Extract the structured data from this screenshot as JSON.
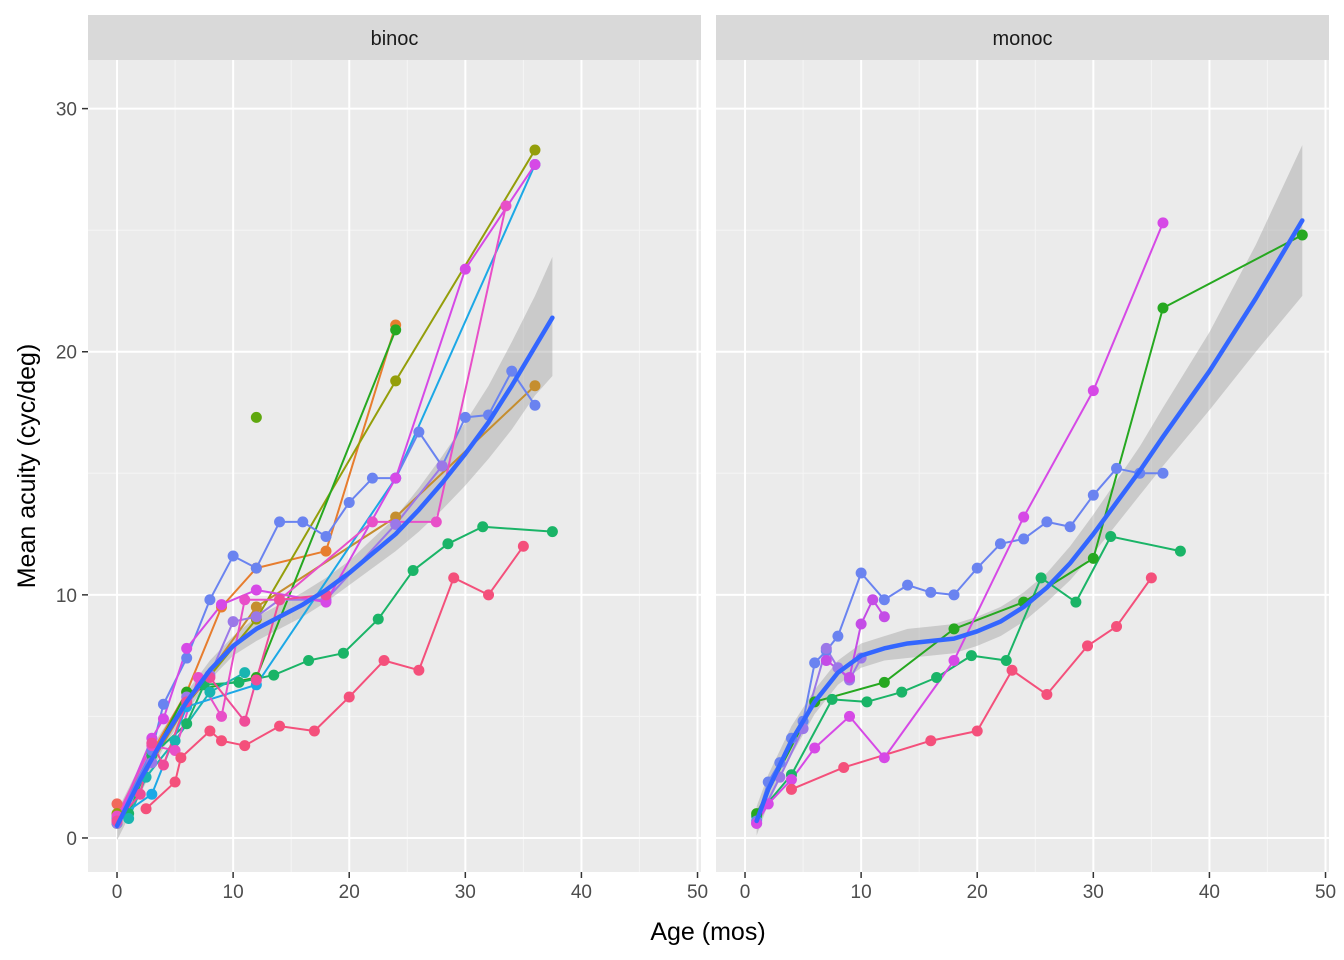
{
  "chart_data": {
    "type": "line",
    "title": "",
    "xlabel": "Age (mos)",
    "ylabel": "Mean acuity (cyc/deg)",
    "panels": [
      "binoc",
      "monoc"
    ],
    "xlim": [
      -2.5,
      50.3
    ],
    "ylim": [
      -1.4,
      32.0
    ],
    "x_ticks": [
      0,
      10,
      20,
      30,
      40,
      50
    ],
    "y_ticks": [
      0,
      10,
      20,
      30
    ],
    "grid": true,
    "legend": "none",
    "colors": {
      "panel_bg": "#ebebeb",
      "strip_bg": "#d9d9d9",
      "grid_major": "#ffffff",
      "grid_minor": "#f5f5f5",
      "smooth_line": "#3366ff",
      "ribbon": "#999999"
    },
    "series": [
      {
        "panel": "binoc",
        "color": "#f2695c",
        "values": [
          [
            0,
            1.4
          ]
        ]
      },
      {
        "panel": "binoc",
        "color": "#e77d2e",
        "values": [
          [
            0,
            0.9
          ],
          [
            3,
            3.5
          ],
          [
            6,
            6.0
          ],
          [
            9,
            9.5
          ],
          [
            12,
            11.1
          ],
          [
            18,
            11.8
          ],
          [
            24,
            21.1
          ]
        ]
      },
      {
        "panel": "binoc",
        "color": "#c58e2f",
        "values": [
          [
            0,
            0.7
          ],
          [
            6,
            5.5
          ],
          [
            12,
            9.5
          ],
          [
            24,
            13.2
          ],
          [
            36,
            18.6
          ]
        ]
      },
      {
        "panel": "binoc",
        "color": "#949e0a",
        "values": [
          [
            0,
            1.0
          ],
          [
            6,
            5.5
          ],
          [
            12,
            9.0
          ],
          [
            24,
            18.8
          ],
          [
            36,
            28.3
          ]
        ]
      },
      {
        "panel": "binoc",
        "color": "#5fa80e",
        "values": [
          [
            12,
            17.3
          ]
        ]
      },
      {
        "panel": "binoc",
        "color": "#26a820",
        "values": [
          [
            0,
            0.6
          ],
          [
            6,
            6.0
          ],
          [
            12,
            6.6
          ],
          [
            24,
            20.9
          ]
        ]
      },
      {
        "panel": "binoc",
        "color": "#1ab467",
        "values": [
          [
            1,
            1.0
          ],
          [
            3,
            3.4
          ],
          [
            6,
            4.7
          ],
          [
            7.5,
            6.3
          ],
          [
            10.5,
            6.4
          ],
          [
            13.5,
            6.7
          ],
          [
            16.5,
            7.3
          ],
          [
            19.5,
            7.6
          ],
          [
            22.5,
            9.0
          ],
          [
            25.5,
            11.0
          ],
          [
            28.5,
            12.1
          ],
          [
            31.5,
            12.8
          ],
          [
            37.5,
            12.6
          ]
        ]
      },
      {
        "panel": "binoc",
        "color": "#19b5b0",
        "values": [
          [
            1,
            0.8
          ],
          [
            2.5,
            2.5
          ],
          [
            5,
            4.0
          ],
          [
            8,
            6.0
          ],
          [
            11,
            6.8
          ]
        ]
      },
      {
        "panel": "binoc",
        "color": "#1ca8e6",
        "values": [
          [
            0,
            0.8
          ],
          [
            3,
            1.8
          ],
          [
            6,
            5.4
          ],
          [
            12,
            6.3
          ],
          [
            24,
            14.8
          ],
          [
            36,
            27.7
          ]
        ]
      },
      {
        "panel": "binoc",
        "color": "#6a83f0",
        "values": [
          [
            0,
            0.7
          ],
          [
            3,
            3.6
          ],
          [
            4,
            5.5
          ],
          [
            6,
            7.4
          ],
          [
            8,
            9.8
          ],
          [
            10,
            11.6
          ],
          [
            12,
            11.1
          ],
          [
            14,
            13.0
          ],
          [
            16,
            13.0
          ],
          [
            18,
            12.4
          ],
          [
            20,
            13.8
          ],
          [
            22,
            14.8
          ],
          [
            24,
            14.8
          ],
          [
            26,
            16.7
          ],
          [
            28,
            15.3
          ],
          [
            30,
            17.3
          ],
          [
            32,
            17.4
          ],
          [
            34,
            19.2
          ],
          [
            36,
            17.8
          ]
        ]
      },
      {
        "panel": "binoc",
        "color": "#9b78e8",
        "values": [
          [
            0,
            0.6
          ],
          [
            3,
            3.1
          ],
          [
            6,
            5.8
          ],
          [
            8,
            6.7
          ],
          [
            10,
            8.9
          ],
          [
            12,
            9.1
          ],
          [
            14,
            9.8
          ],
          [
            18,
            9.8
          ],
          [
            24,
            12.9
          ],
          [
            28,
            15.3
          ]
        ]
      },
      {
        "panel": "binoc",
        "color": "#d649e6",
        "values": [
          [
            0,
            0.7
          ],
          [
            3,
            4.1
          ],
          [
            4,
            4.9
          ],
          [
            6,
            7.8
          ],
          [
            9,
            9.6
          ],
          [
            12,
            10.2
          ],
          [
            18,
            9.7
          ],
          [
            24,
            14.8
          ],
          [
            30,
            23.4
          ],
          [
            36,
            27.7
          ]
        ]
      },
      {
        "panel": "binoc",
        "color": "#e84fc8",
        "values": [
          [
            0,
            0.9
          ],
          [
            3,
            3.8
          ],
          [
            5,
            3.6
          ],
          [
            7,
            6.6
          ],
          [
            9,
            5.0
          ],
          [
            11,
            9.8
          ],
          [
            14,
            9.8
          ],
          [
            22,
            13.0
          ],
          [
            27.5,
            13.0
          ],
          [
            33.5,
            26.0
          ]
        ]
      },
      {
        "panel": "binoc",
        "color": "#ef4c98",
        "values": [
          [
            0,
            0.7
          ],
          [
            2,
            1.8
          ],
          [
            3,
            3.9
          ],
          [
            4,
            3.0
          ],
          [
            6,
            5.6
          ],
          [
            8,
            6.6
          ],
          [
            11,
            4.8
          ],
          [
            12,
            6.5
          ],
          [
            14,
            9.8
          ],
          [
            18,
            10.0
          ]
        ]
      },
      {
        "panel": "binoc",
        "color": "#f4507b",
        "values": [
          [
            2.5,
            1.2
          ],
          [
            5,
            2.3
          ],
          [
            5.5,
            3.3
          ],
          [
            8,
            4.4
          ],
          [
            9,
            4.0
          ],
          [
            11,
            3.8
          ],
          [
            14,
            4.6
          ],
          [
            17,
            4.4
          ],
          [
            20,
            5.8
          ],
          [
            23,
            7.3
          ],
          [
            26,
            6.9
          ],
          [
            29,
            10.7
          ],
          [
            32,
            10.0
          ],
          [
            35,
            12.0
          ]
        ]
      },
      {
        "panel": "monoc",
        "color": "#1ab467",
        "values": [
          [
            1,
            0.9
          ],
          [
            4,
            2.6
          ],
          [
            7.5,
            5.7
          ],
          [
            10.5,
            5.6
          ],
          [
            13.5,
            6.0
          ],
          [
            16.5,
            6.6
          ],
          [
            19.5,
            7.5
          ],
          [
            22.5,
            7.3
          ],
          [
            25.5,
            10.7
          ],
          [
            28.5,
            9.7
          ],
          [
            31.5,
            12.4
          ],
          [
            37.5,
            11.8
          ]
        ]
      },
      {
        "panel": "monoc",
        "color": "#26a820",
        "values": [
          [
            1,
            1.0
          ],
          [
            6,
            5.6
          ],
          [
            12,
            6.4
          ],
          [
            18,
            8.6
          ],
          [
            24,
            9.7
          ],
          [
            30,
            11.5
          ],
          [
            36,
            21.8
          ],
          [
            48,
            24.8
          ]
        ]
      },
      {
        "panel": "monoc",
        "color": "#6a83f0",
        "values": [
          [
            1,
            0.7
          ],
          [
            2,
            2.3
          ],
          [
            3,
            3.1
          ],
          [
            4,
            4.1
          ],
          [
            5,
            4.8
          ],
          [
            6,
            7.2
          ],
          [
            7,
            7.7
          ],
          [
            8,
            8.3
          ],
          [
            10,
            10.9
          ],
          [
            12,
            9.8
          ],
          [
            14,
            10.4
          ],
          [
            16,
            10.1
          ],
          [
            18,
            10.0
          ],
          [
            20,
            11.1
          ],
          [
            22,
            12.1
          ],
          [
            24,
            12.3
          ],
          [
            26,
            13.0
          ],
          [
            28,
            12.8
          ],
          [
            30,
            14.1
          ],
          [
            32,
            15.2
          ],
          [
            34,
            15.0
          ],
          [
            36,
            15.0
          ]
        ]
      },
      {
        "panel": "monoc",
        "color": "#9b78e8",
        "values": [
          [
            1,
            0.6
          ],
          [
            3,
            2.5
          ],
          [
            5,
            4.5
          ],
          [
            7,
            7.8
          ],
          [
            8,
            7.0
          ],
          [
            9,
            6.5
          ],
          [
            10,
            7.4
          ]
        ]
      },
      {
        "panel": "monoc",
        "color": "#d649e6",
        "values": [
          [
            1,
            0.6
          ],
          [
            2,
            1.4
          ],
          [
            4,
            2.4
          ],
          [
            6,
            3.7
          ],
          [
            9,
            5.0
          ],
          [
            12,
            3.3
          ],
          [
            18,
            7.3
          ],
          [
            24,
            13.2
          ],
          [
            30,
            18.4
          ],
          [
            36,
            25.3
          ]
        ]
      },
      {
        "panel": "monoc",
        "color": "#c44ce6",
        "values": [
          [
            7,
            7.3
          ],
          [
            9,
            6.6
          ],
          [
            10,
            8.8
          ],
          [
            11,
            9.8
          ],
          [
            12,
            9.1
          ]
        ]
      },
      {
        "panel": "monoc",
        "color": "#f4507b",
        "values": [
          [
            4,
            2.0
          ],
          [
            8.5,
            2.9
          ],
          [
            16,
            4.0
          ],
          [
            20,
            4.4
          ],
          [
            23,
            6.9
          ],
          [
            26,
            5.9
          ],
          [
            29.5,
            7.9
          ],
          [
            32,
            8.7
          ],
          [
            35,
            10.7
          ]
        ]
      }
    ],
    "smooth": [
      {
        "panel": "binoc",
        "x": [
          0,
          2,
          4,
          6,
          8,
          10,
          12,
          14,
          16,
          18,
          20,
          22,
          24,
          26,
          28,
          30,
          32,
          34,
          36,
          37.5
        ],
        "y": [
          0.5,
          2.4,
          4.1,
          5.6,
          6.9,
          7.9,
          8.6,
          9.1,
          9.6,
          10.2,
          10.9,
          11.7,
          12.5,
          13.5,
          14.6,
          15.8,
          17.1,
          18.6,
          20.2,
          21.4
        ],
        "lo": [
          -0.1,
          1.8,
          3.7,
          5.2,
          6.5,
          7.5,
          8.1,
          8.6,
          9.1,
          9.7,
          10.4,
          11.1,
          11.8,
          12.6,
          13.5,
          14.5,
          15.6,
          16.8,
          18.2,
          19.0
        ],
        "hi": [
          1.1,
          3.0,
          4.5,
          6.0,
          7.3,
          8.3,
          9.1,
          9.6,
          10.1,
          10.7,
          11.4,
          12.3,
          13.2,
          14.4,
          15.7,
          17.1,
          18.6,
          20.4,
          22.3,
          23.9
        ]
      },
      {
        "panel": "monoc",
        "x": [
          1,
          2,
          4,
          6,
          8,
          10,
          12,
          14,
          16,
          18,
          20,
          22,
          24,
          26,
          28,
          30,
          32,
          34,
          36,
          40,
          44,
          48
        ],
        "y": [
          0.7,
          2.0,
          4.0,
          5.6,
          6.8,
          7.5,
          7.8,
          8.0,
          8.1,
          8.2,
          8.5,
          8.9,
          9.5,
          10.3,
          11.3,
          12.5,
          13.8,
          15.1,
          16.5,
          19.2,
          22.2,
          25.4
        ],
        "lo": [
          0.1,
          1.4,
          3.4,
          5.1,
          6.3,
          7.0,
          7.3,
          7.4,
          7.5,
          7.6,
          7.9,
          8.3,
          8.9,
          9.7,
          10.6,
          11.7,
          12.9,
          14.1,
          15.3,
          17.6,
          20.0,
          22.3
        ],
        "hi": [
          1.3,
          2.6,
          4.6,
          6.1,
          7.3,
          8.0,
          8.3,
          8.6,
          8.7,
          8.8,
          9.1,
          9.5,
          10.1,
          10.9,
          12.0,
          13.3,
          14.7,
          16.1,
          17.7,
          20.8,
          24.4,
          28.5
        ]
      }
    ]
  }
}
